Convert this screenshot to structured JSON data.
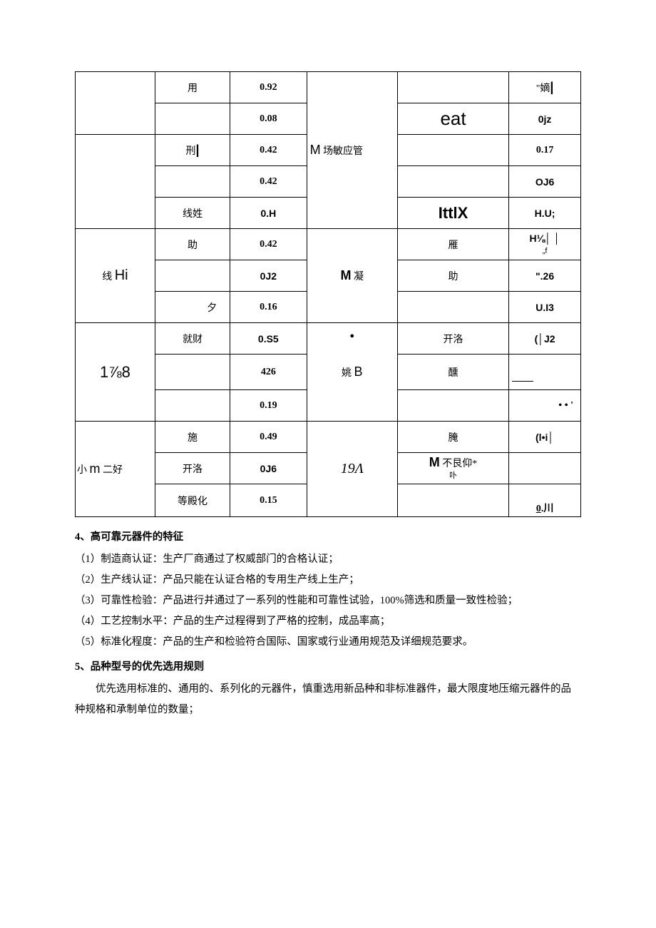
{
  "table": {
    "r1": {
      "c2": "用",
      "c3": "0.92",
      "c6_html": "\"嫡<span class='arial bold' style='font-size:18px'>|</span>"
    },
    "r2": {
      "c3": "0.08",
      "c5_html": "<span class='arial' style='font-size:26px'>eat</span>",
      "c6": "0jz"
    },
    "r3": {
      "c2_html": "刑<span class='arial bold' style='font-size:18px'>|</span>",
      "c3": "0.42",
      "c4_html": "<span class='arial' style='font-size:18px'>M</span> 场敏应管",
      "c6": "0.17"
    },
    "r4": {
      "c3": "0.42",
      "c6": "OJ6"
    },
    "r5": {
      "c2": "线姓",
      "c3": "0.H",
      "c5_html": "<span class='arial bold' style='font-size:22px'>IttlX</span>",
      "c6": "H.U;"
    },
    "r6": {
      "c1_html": "线 <span class='arial' style='font-size:20px'>Hi</span>",
      "c2": "助",
      "c3": "0.42",
      "c4_html": "<span class='arial bold' style='font-size:18px'>M</span> 凝",
      "c5": "雁",
      "c6_html": "<span class='bold'>H⅛│ │</span><br><span class='small'>„f</span>"
    },
    "r7": {
      "c3": "0J2",
      "c5": "助",
      "c6": "\".26"
    },
    "r8": {
      "c2": "夕",
      "c3": "0.16",
      "c6": "U.I3"
    },
    "r9": {
      "c1_html": "<span class='arial' style='font-size:22px'>1⅞8</span>",
      "c2": "就财",
      "c3": "0.S5",
      "c4_dot": "•",
      "c4_text_html": "姚 <span class='arial' style='font-size:18px'>B</span>",
      "c5": "开洛",
      "c6": "(│J2"
    },
    "r10": {
      "c3": "426",
      "c5": "醺",
      "c6_html": "<span style='display:inline-block;width:30px;border-bottom:1px solid #000'></span>"
    },
    "r11": {
      "c3": "0.19",
      "c6": "• • '"
    },
    "r12": {
      "c1_html": "小 <span class='arial' style='font-size:18px'>m</span> 二好",
      "c2": "施",
      "c3": "0.49",
      "c4_html": "<span class='italic' style='font-size:20px;font-family:serif'>19Λ</span>",
      "c5": "腌",
      "c6": "(l•i│"
    },
    "r13": {
      "c2": "开洛",
      "c3": "0J6",
      "c5_html": "<span class='arial bold' style='font-size:18px'>M</span> 不艮仰*<br><span class='small'>卟</span>"
    },
    "r14": {
      "c2": "等殿化",
      "c3": "0.15",
      "c6_html": "<span class='underline'>0</span>.川"
    }
  },
  "sections": {
    "h4": "4、高可靠元器件的特征",
    "p4_1": "（1）制造商认证：生产厂商通过了权威部门的合格认证；",
    "p4_2": "（2）生产线认证：产品只能在认证合格的专用生产线上生产；",
    "p4_3": "（3）可靠性检验：产品进行并通过了一系列的性能和可靠性试验，100%筛选和质量一致性检验；",
    "p4_4": "（4）工艺控制水平：产品的生产过程得到了严格的控制，成品率高；",
    "p4_5": "（5）标准化程度：产品的生产和检验符合国际、国家或行业通用规范及详细规范要求。",
    "h5": "5、品种型号的优先选用规则",
    "p5_1": "优先选用标准的、通用的、系列化的元器件，慎重选用新品种和非标准器件，最大限度地压缩元器件的品种规格和承制单位的数量；"
  }
}
